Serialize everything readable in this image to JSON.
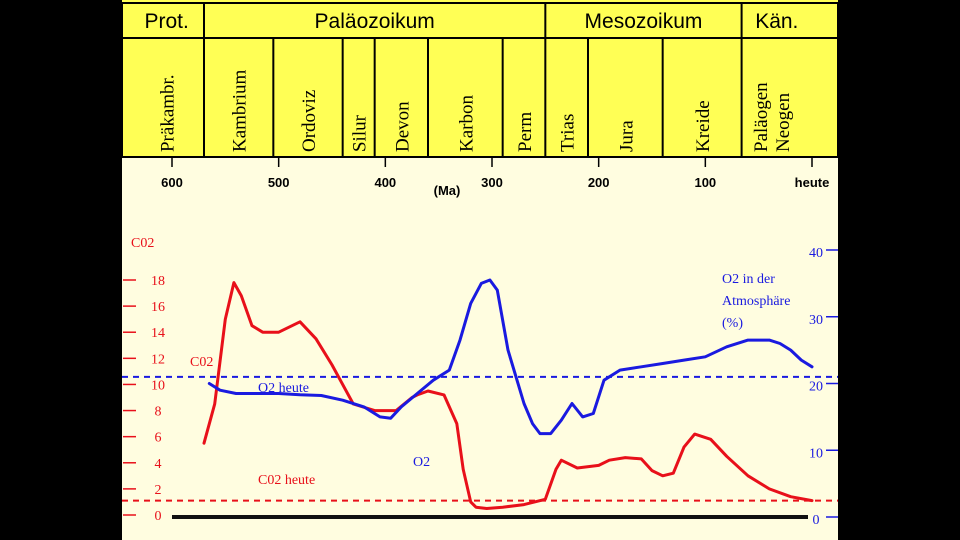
{
  "chart_data": {
    "type": "line",
    "title": "",
    "eras": [
      {
        "name": "Prot.",
        "from": 640,
        "to": 570
      },
      {
        "name": "Paläozoikum",
        "from": 570,
        "to": 250
      },
      {
        "name": "Mesozoikum",
        "from": 250,
        "to": 66
      },
      {
        "name": "Kän.",
        "from": 66,
        "to": 0
      }
    ],
    "periods": [
      {
        "name": "Präkambr.",
        "from": 640,
        "to": 570
      },
      {
        "name": "Kambrium",
        "from": 570,
        "to": 505
      },
      {
        "name": "Ordoviz",
        "from": 505,
        "to": 440
      },
      {
        "name": "Silur",
        "from": 440,
        "to": 410
      },
      {
        "name": "Devon",
        "from": 410,
        "to": 360
      },
      {
        "name": "Karbon",
        "from": 360,
        "to": 290
      },
      {
        "name": "Perm",
        "from": 290,
        "to": 250
      },
      {
        "name": "Trias",
        "from": 250,
        "to": 210
      },
      {
        "name": "Jura",
        "from": 210,
        "to": 140
      },
      {
        "name": "Kreide",
        "from": 140,
        "to": 66
      },
      {
        "name": "Paläogen Neogen",
        "from": 66,
        "to": 0
      }
    ],
    "x_axis": {
      "ticks": [
        {
          "value": 600,
          "label": "600"
        },
        {
          "value": 500,
          "label": "500"
        },
        {
          "value": 400,
          "label": "400"
        },
        {
          "value": 300,
          "label": "300"
        },
        {
          "value": 200,
          "label": "200"
        },
        {
          "value": 100,
          "label": "100"
        },
        {
          "value": 0,
          "label": "heute"
        }
      ],
      "unit_label": "(Ma)",
      "range": [
        640,
        0
      ]
    },
    "y_left": {
      "title": "C02",
      "range": [
        0,
        20
      ],
      "ticks": [
        0,
        2,
        4,
        6,
        8,
        10,
        12,
        14,
        16,
        18
      ],
      "color": "#e8101a"
    },
    "y_right": {
      "title_lines": [
        "O2 in der",
        "Atmosphäre",
        "(%)"
      ],
      "range": [
        0,
        50
      ],
      "ticks": [
        0,
        10,
        20,
        30,
        40
      ],
      "color": "#1a1ae0"
    },
    "series": [
      {
        "name": "CO2",
        "label": "C02",
        "axis": "left",
        "color": "#e8101a",
        "x": [
          570,
          560,
          550,
          542,
          535,
          525,
          515,
          500,
          480,
          465,
          450,
          430,
          410,
          390,
          375,
          370,
          360,
          345,
          333,
          327,
          320,
          315,
          305,
          290,
          270,
          250,
          240,
          235,
          220,
          200,
          190,
          175,
          160,
          150,
          140,
          130,
          120,
          110,
          95,
          80,
          60,
          40,
          20,
          0
        ],
        "values": [
          5.5,
          8.5,
          15.0,
          17.8,
          16.8,
          14.5,
          14.0,
          14.0,
          14.8,
          13.5,
          11.5,
          8.5,
          8.0,
          8.0,
          9.0,
          9.2,
          9.5,
          9.2,
          7.0,
          3.5,
          1.0,
          0.6,
          0.5,
          0.6,
          0.8,
          1.2,
          3.5,
          4.2,
          3.6,
          3.8,
          4.2,
          4.4,
          4.3,
          3.4,
          3.0,
          3.2,
          5.2,
          6.2,
          5.8,
          4.5,
          3.0,
          2.0,
          1.4,
          1.1
        ]
      },
      {
        "name": "O2",
        "label": "O2",
        "axis": "right",
        "color": "#1a1ae0",
        "x": [
          565,
          555,
          540,
          520,
          500,
          480,
          460,
          440,
          420,
          405,
          395,
          385,
          370,
          355,
          340,
          330,
          320,
          310,
          302,
          295,
          285,
          270,
          262,
          255,
          245,
          235,
          225,
          215,
          205,
          195,
          180,
          160,
          140,
          120,
          100,
          80,
          60,
          40,
          30,
          20,
          10,
          0
        ],
        "values": [
          20,
          19,
          18.5,
          18.5,
          18.5,
          18.3,
          18.2,
          17.5,
          16.5,
          15.0,
          14.8,
          16.5,
          18.5,
          20.5,
          22.0,
          26.5,
          32.0,
          35.0,
          35.5,
          34.0,
          25.0,
          17.0,
          14.0,
          12.5,
          12.5,
          14.5,
          17.0,
          15.0,
          15.5,
          20.5,
          22.0,
          22.5,
          23.0,
          23.5,
          24.0,
          25.5,
          26.5,
          26.5,
          26.0,
          25.0,
          23.5,
          22.5
        ]
      }
    ],
    "reference_lines": [
      {
        "name": "O2 heute",
        "label": "O2 heute",
        "axis": "right",
        "value": 21,
        "color": "#1a1ae0"
      },
      {
        "name": "CO2 heute",
        "label": "C02 heute",
        "axis": "left",
        "value": 1.1,
        "color": "#e8101a"
      }
    ],
    "series_labels": {
      "co2": "C02",
      "o2": "O2"
    }
  }
}
